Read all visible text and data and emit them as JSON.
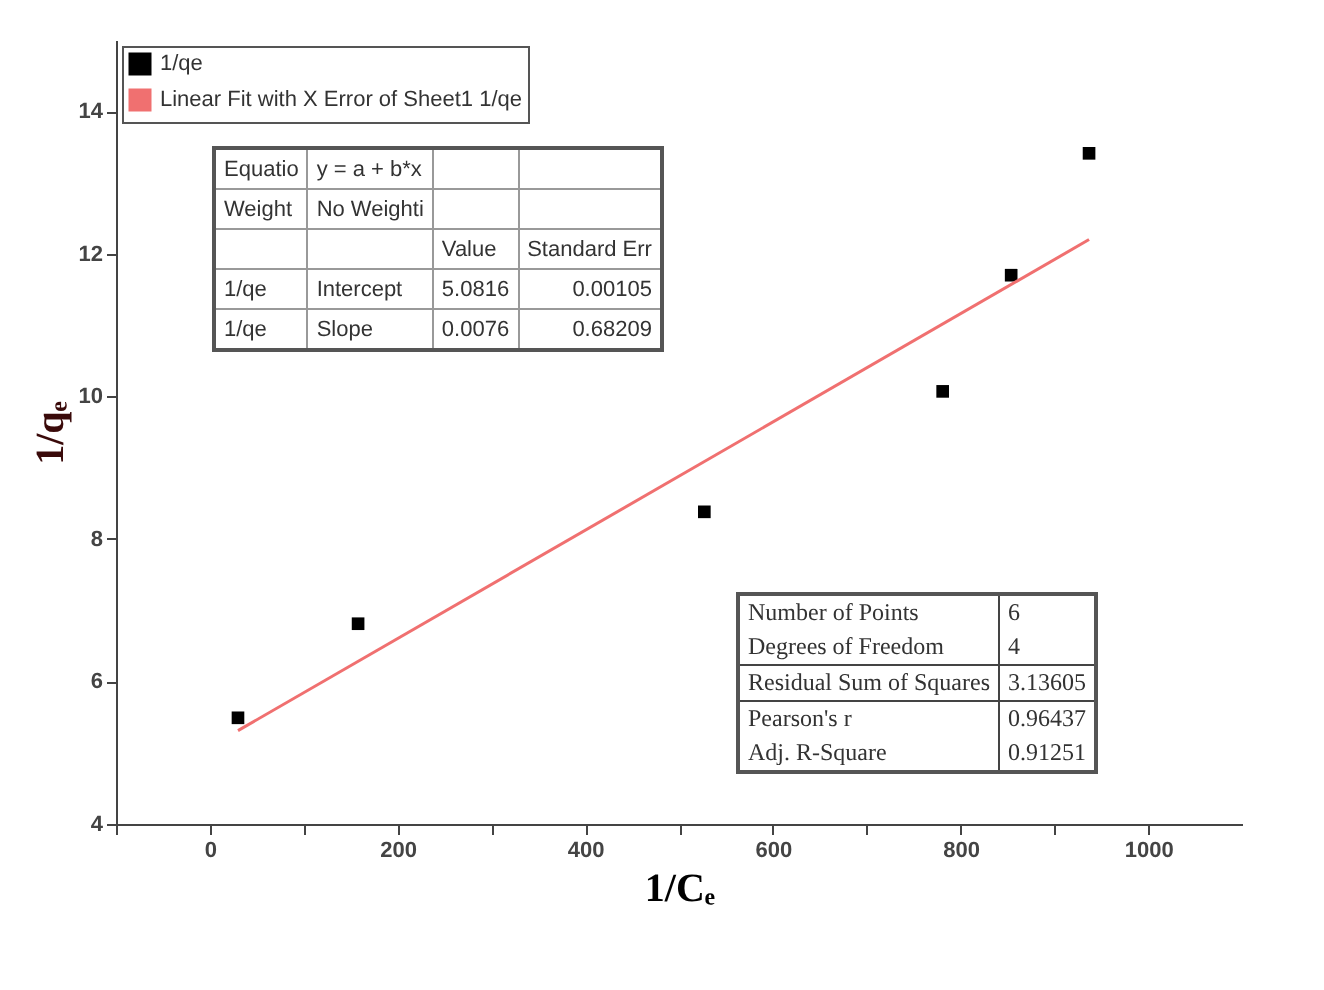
{
  "chart_data": {
    "type": "scatter",
    "xlabel": "1/Cₑ",
    "ylabel": "1/qₑ",
    "xlim": [
      -100,
      1100
    ],
    "ylim": [
      4,
      15
    ],
    "xticks": [
      {
        "value": -100,
        "label": null
      },
      0,
      {
        "value": 100,
        "label": null
      },
      200,
      {
        "value": 300,
        "label": null
      },
      400,
      {
        "value": 500,
        "label": null
      },
      600,
      {
        "value": 700,
        "label": null
      },
      800,
      {
        "value": 900,
        "label": null
      },
      1000
    ],
    "yticks": [
      4,
      6,
      8,
      10,
      12,
      14
    ],
    "series": [
      {
        "name": "1/qe",
        "marker": "square",
        "color": "#000000",
        "x": [
          30,
          158,
          527,
          781,
          854,
          937
        ],
        "values": [
          5.49,
          6.81,
          8.38,
          10.07,
          11.7,
          13.41
        ]
      },
      {
        "name": "Linear Fit with X Error of Sheet1 1/qe",
        "type": "line",
        "color": "#f07070",
        "x": [
          30,
          937
        ],
        "values": [
          5.31,
          12.2
        ]
      }
    ],
    "legend": "top left",
    "grid": false,
    "annotations": [
      "Equatio",
      "y = a + b*x",
      "Weight",
      "No Weighti",
      "Value",
      "Standard Err",
      "1/qe",
      "Intercept",
      "5.0816",
      "0.00105",
      "1/qe",
      "Slope",
      "0.0076",
      "0.68209",
      "Number of Points",
      "6",
      "Degrees of Freedom",
      "4",
      "Residual Sum of Squares",
      "3.13605",
      "Pearson's r",
      "0.96437",
      "Adj. R-Square",
      "0.91251"
    ]
  }
}
